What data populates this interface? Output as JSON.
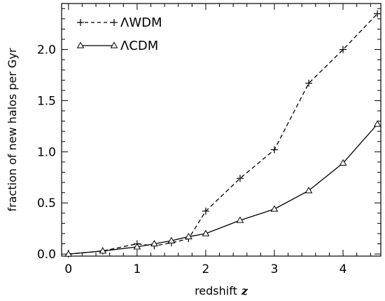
{
  "chart_data": {
    "type": "line",
    "xlabel": "redshift",
    "xlabel_var": "z",
    "ylabel": "fraction of new halos per Gyr",
    "xlim": [
      -0.1,
      4.55
    ],
    "ylim": [
      -0.02,
      2.45
    ],
    "xticks": [
      0,
      1,
      2,
      3,
      4
    ],
    "xtick_labels": [
      "0",
      "1",
      "2",
      "3",
      "4"
    ],
    "yticks": [
      0.0,
      0.5,
      1.0,
      1.5,
      2.0
    ],
    "ytick_labels": [
      "0.0",
      "0.5",
      "1.0",
      "1.5",
      "2.0"
    ],
    "grid": false,
    "legend_position": "top-left",
    "series": [
      {
        "name": "ΛWDM",
        "line_style": "dashed",
        "marker": "plus",
        "x": [
          0,
          0.5,
          1.0,
          1.25,
          1.5,
          1.75,
          2.0,
          2.5,
          3.0,
          3.5,
          4.0,
          4.5
        ],
        "y": [
          0.0,
          0.03,
          0.1,
          0.08,
          0.11,
          0.15,
          0.42,
          0.74,
          1.02,
          1.67,
          2.0,
          2.35
        ]
      },
      {
        "name": "ΛCDM",
        "line_style": "solid",
        "marker": "triangle",
        "x": [
          0,
          0.5,
          1.0,
          1.25,
          1.5,
          1.75,
          2.0,
          2.5,
          3.0,
          3.5,
          4.0,
          4.5
        ],
        "y": [
          0.0,
          0.03,
          0.07,
          0.1,
          0.13,
          0.17,
          0.2,
          0.33,
          0.44,
          0.62,
          0.89,
          1.27
        ]
      }
    ]
  }
}
